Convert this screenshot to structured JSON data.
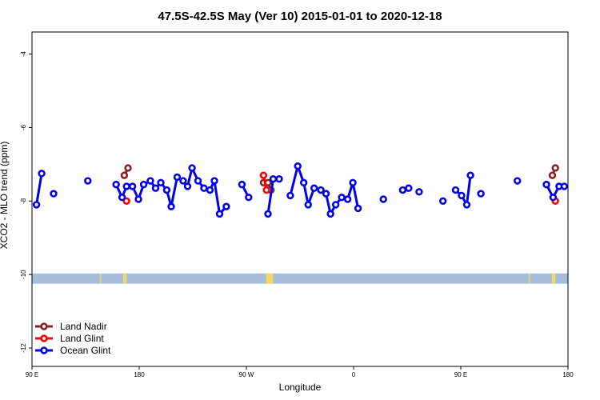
{
  "colors": {
    "land_nadir": "#8b2323",
    "land_glint": "#ff0000",
    "ocean_glint": "#0000ee",
    "ocean_band": "#a6bddb",
    "land_band": "#f5d66a"
  },
  "chart_data": {
    "type": "line",
    "title": "47.5S-42.5S May (Ver 10)   2015-01-01 to 2020-12-18",
    "xlabel": "Longitude",
    "ylabel": "XCO2 - MLO trend (ppm)",
    "xlim": [
      90,
      450
    ],
    "ylim": [
      -12.5,
      -3.4
    ],
    "x_ticks": [
      {
        "value": 90,
        "label": "90 E"
      },
      {
        "value": 162,
        "label": "180"
      },
      {
        "value": 234,
        "label": "90 W"
      },
      {
        "value": 306,
        "label": "0"
      },
      {
        "value": 378,
        "label": "90 E"
      },
      {
        "value": 450,
        "label": "180"
      }
    ],
    "y_ticks": [
      {
        "value": -4,
        "label": "-4"
      },
      {
        "value": -6,
        "label": "-6"
      },
      {
        "value": -8,
        "label": "-8"
      },
      {
        "value": -10,
        "label": "-10"
      },
      {
        "value": -12,
        "label": "-12"
      }
    ],
    "grid": false,
    "legend_position": "bottom-left",
    "surface_band": {
      "y_range": [
        -10.25,
        -9.97
      ],
      "land_segments": [
        [
          135.6,
          136.4
        ],
        [
          151.2,
          153.6
        ],
        [
          247.2,
          252.0
        ],
        [
          423.6,
          424.4
        ],
        [
          439.2,
          441.6
        ]
      ]
    },
    "series": [
      {
        "name": "Land Nadir",
        "color_key": "land_nadir",
        "segments": [
          [
            [
              152,
              -7.3
            ],
            [
              154.5,
              -7.1
            ]
          ],
          [
            [
              245.5,
              -7.5
            ],
            [
              248.5,
              -7.5
            ],
            [
              250.5,
              -7.7
            ]
          ],
          [
            [
              439.5,
              -7.3
            ],
            [
              441.5,
              -7.1
            ]
          ]
        ]
      },
      {
        "name": "Land Glint",
        "color_key": "land_glint",
        "segments": [
          [
            [
              153.5,
              -8.0
            ]
          ],
          [
            [
              245.5,
              -7.3
            ],
            [
              247.5,
              -7.7
            ]
          ],
          [
            [
              441.5,
              -8.0
            ]
          ]
        ]
      },
      {
        "name": "Ocean Glint",
        "color_key": "ocean_glint",
        "segments": [
          [
            [
              93,
              -8.1
            ],
            [
              96.5,
              -7.25
            ]
          ],
          [
            [
              104.5,
              -7.8
            ]
          ],
          [
            [
              127.5,
              -7.45
            ]
          ],
          [
            [
              146.5,
              -7.55
            ],
            [
              150.5,
              -7.9
            ],
            [
              153.5,
              -7.6
            ],
            [
              157.5,
              -7.6
            ],
            [
              161.5,
              -7.95
            ],
            [
              165,
              -7.55
            ],
            [
              169.5,
              -7.45
            ],
            [
              173,
              -7.65
            ],
            [
              176.5,
              -7.5
            ],
            [
              180.5,
              -7.7
            ],
            [
              183.5,
              -8.15
            ],
            [
              187.5,
              -7.35
            ],
            [
              191.5,
              -7.45
            ],
            [
              194.5,
              -7.6
            ],
            [
              197.5,
              -7.1
            ],
            [
              201.5,
              -7.45
            ],
            [
              205.5,
              -7.65
            ],
            [
              209.5,
              -7.7
            ],
            [
              212.5,
              -7.45
            ],
            [
              216,
              -8.35
            ],
            [
              220.5,
              -8.15
            ]
          ],
          [
            [
              231,
              -7.55
            ],
            [
              235.5,
              -7.9
            ]
          ],
          [
            [
              248.5,
              -8.35
            ],
            [
              252,
              -7.4
            ],
            [
              256,
              -7.4
            ]
          ],
          [
            [
              263.5,
              -7.85
            ],
            [
              268.5,
              -7.05
            ],
            [
              272.5,
              -7.5
            ],
            [
              275.5,
              -8.1
            ],
            [
              279.5,
              -7.65
            ],
            [
              284,
              -7.7
            ],
            [
              287.5,
              -7.8
            ],
            [
              290.5,
              -8.35
            ],
            [
              294,
              -8.1
            ],
            [
              298,
              -7.9
            ],
            [
              302,
              -7.95
            ],
            [
              305.5,
              -7.5
            ],
            [
              309,
              -8.2
            ]
          ],
          [
            [
              326,
              -7.95
            ]
          ],
          [
            [
              339,
              -7.7
            ],
            [
              343,
              -7.65
            ]
          ],
          [
            [
              350,
              -7.75
            ]
          ],
          [
            [
              366,
              -8.0
            ]
          ],
          [
            [
              374.5,
              -7.7
            ],
            [
              378.5,
              -7.85
            ],
            [
              382,
              -8.1
            ],
            [
              384.5,
              -7.3
            ]
          ],
          [
            [
              391.5,
              -7.8
            ]
          ],
          [
            [
              416,
              -7.45
            ]
          ],
          [
            [
              435.5,
              -7.55
            ],
            [
              440,
              -7.9
            ],
            [
              444,
              -7.6
            ],
            [
              447.5,
              -7.6
            ]
          ]
        ]
      }
    ]
  }
}
